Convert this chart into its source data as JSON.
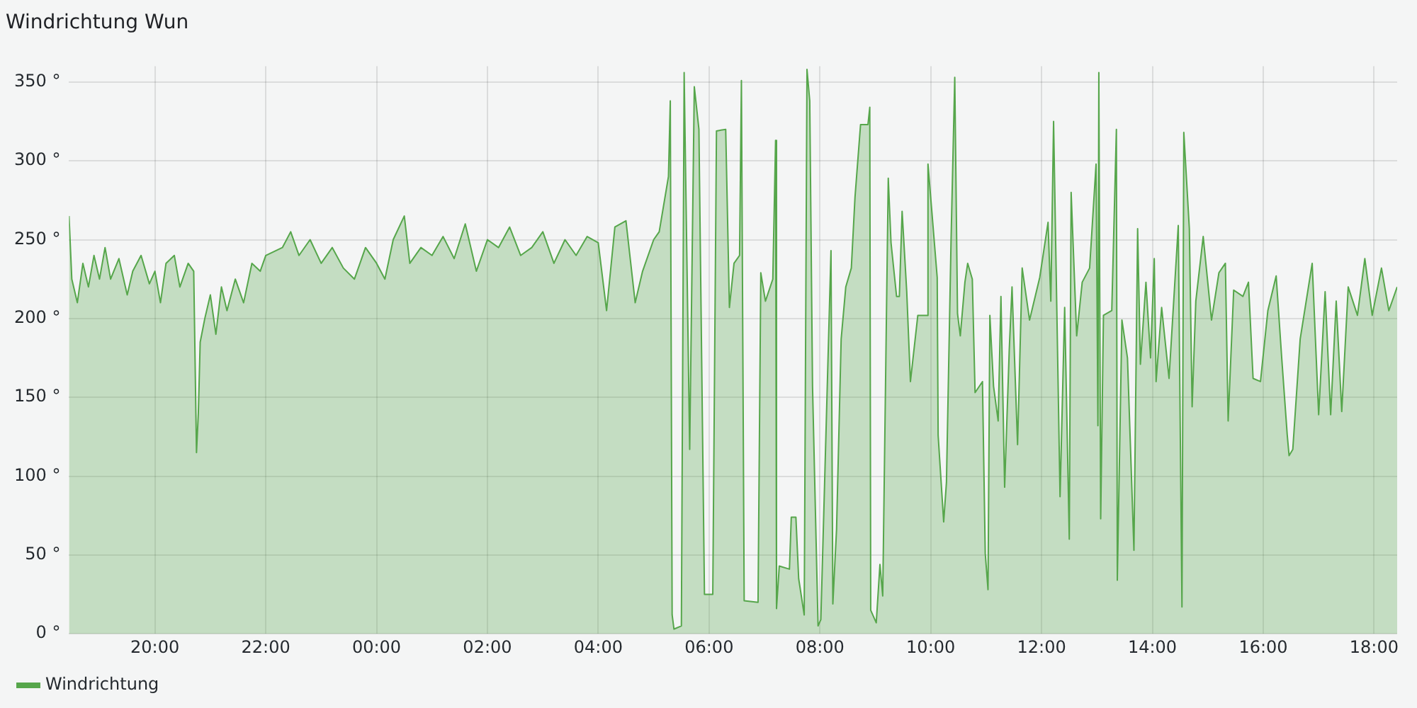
{
  "chart_data": {
    "type": "area",
    "title": "Windrichtung Wun",
    "legend": "bottom left",
    "grid": true,
    "marker": "none",
    "line_style": "solid",
    "xlim": [
      "--01-01T18:27",
      "--01-02T18:25"
    ],
    "xticks": [
      {
        "value": "--01-01T20:00",
        "label": "20:00"
      },
      {
        "value": "--01-01T22:00",
        "label": "22:00"
      },
      {
        "value": "--01-02T00:00",
        "label": "00:00"
      },
      {
        "value": "--01-02T02:00",
        "label": "02:00"
      },
      {
        "value": "--01-02T04:00",
        "label": "04:00"
      },
      {
        "value": "--01-02T06:00",
        "label": "06:00"
      },
      {
        "value": "--01-02T08:00",
        "label": "08:00"
      },
      {
        "value": "--01-02T10:00",
        "label": "10:00"
      },
      {
        "value": "--01-02T12:00",
        "label": "12:00"
      },
      {
        "value": "--01-02T14:00",
        "label": "14:00"
      },
      {
        "value": "--01-02T16:00",
        "label": "16:00"
      },
      {
        "value": "--01-02T18:00",
        "label": "18:00"
      }
    ],
    "ylim": [
      0,
      360
    ],
    "yticks": [
      {
        "value": 0,
        "label": "0 °"
      },
      {
        "value": 50,
        "label": "50 °"
      },
      {
        "value": 100,
        "label": "100 °"
      },
      {
        "value": 150,
        "label": "150 °"
      },
      {
        "value": 200,
        "label": "200 °"
      },
      {
        "value": 250,
        "label": "250 °"
      },
      {
        "value": 300,
        "label": "300 °"
      },
      {
        "value": 350,
        "label": "350 °"
      }
    ],
    "series": [
      {
        "name": "Windrichtung",
        "color": "#56a64b",
        "x": [
          "--01-01T18:27",
          "--01-01T18:30",
          "--01-01T18:36",
          "--01-01T18:42",
          "--01-01T18:48",
          "--01-01T18:54",
          "--01-01T19:00",
          "--01-01T19:06",
          "--01-01T19:12",
          "--01-01T19:21",
          "--01-01T19:30",
          "--01-01T19:36",
          "--01-01T19:45",
          "--01-01T19:54",
          "--01-01T20:00",
          "--01-01T20:06",
          "--01-01T20:12",
          "--01-01T20:21",
          "--01-01T20:27",
          "--01-01T20:36",
          "--01-01T20:42",
          "--01-01T20:45",
          "--01-01T20:47",
          "--01-01T20:49",
          "--01-01T20:54",
          "--01-01T21:00",
          "--01-01T21:06",
          "--01-01T21:12",
          "--01-01T21:18",
          "--01-01T21:27",
          "--01-01T21:36",
          "--01-01T21:45",
          "--01-01T21:54",
          "--01-01T22:00",
          "--01-01T22:18",
          "--01-01T22:27",
          "--01-01T22:36",
          "--01-01T22:48",
          "--01-01T23:00",
          "--01-01T23:12",
          "--01-01T23:24",
          "--01-01T23:36",
          "--01-01T23:48",
          "--01-02T00:00",
          "--01-02T00:09",
          "--01-02T00:18",
          "--01-02T00:30",
          "--01-02T00:36",
          "--01-02T00:48",
          "--01-02T01:00",
          "--01-02T01:12",
          "--01-02T01:24",
          "--01-02T01:36",
          "--01-02T01:48",
          "--01-02T02:00",
          "--01-02T02:12",
          "--01-02T02:24",
          "--01-02T02:36",
          "--01-02T02:48",
          "--01-02T03:00",
          "--01-02T03:12",
          "--01-02T03:24",
          "--01-02T03:36",
          "--01-02T03:48",
          "--01-02T04:00",
          "--01-02T04:09",
          "--01-02T04:18",
          "--01-02T04:30",
          "--01-02T04:40",
          "--01-02T04:48",
          "--01-02T05:00",
          "--01-02T05:06",
          "--01-02T05:16",
          "--01-02T05:18",
          "--01-02T05:20",
          "--01-02T05:22",
          "--01-02T05:30",
          "--01-02T05:33",
          "--01-02T05:39",
          "--01-02T05:44",
          "--01-02T05:49",
          "--01-02T05:55",
          "--01-02T06:04",
          "--01-02T06:08",
          "--01-02T06:18",
          "--01-02T06:22",
          "--01-02T06:27",
          "--01-02T06:33",
          "--01-02T06:35",
          "--01-02T06:38",
          "--01-02T06:53",
          "--01-02T06:56",
          "--01-02T07:01",
          "--01-02T07:09",
          "--01-02T07:12",
          "--01-02T07:13",
          "--01-02T07:16",
          "--01-02T07:27",
          "--01-02T07:29",
          "--01-02T07:34",
          "--01-02T07:37",
          "--01-02T07:43",
          "--01-02T07:46",
          "--01-02T07:49",
          "--01-02T07:52",
          "--01-02T07:58",
          "--01-02T08:01",
          "--01-02T08:12",
          "--01-02T08:14",
          "--01-02T08:18",
          "--01-02T08:23",
          "--01-02T08:28",
          "--01-02T08:34",
          "--01-02T08:38",
          "--01-02T08:44",
          "--01-02T08:52",
          "--01-02T08:54",
          "--01-02T08:55",
          "--01-02T09:01",
          "--01-02T09:05",
          "--01-02T09:08",
          "--01-02T09:14",
          "--01-02T09:17",
          "--01-02T09:23",
          "--01-02T09:26",
          "--01-02T09:29",
          "--01-02T09:34",
          "--01-02T09:38",
          "--01-02T09:46",
          "--01-02T09:56",
          "--01-02T09:57",
          "--01-02T10:07",
          "--01-02T10:08",
          "--01-02T10:14",
          "--01-02T10:17",
          "--01-02T10:22",
          "--01-02T10:26",
          "--01-02T10:29",
          "--01-02T10:32",
          "--01-02T10:37",
          "--01-02T10:40",
          "--01-02T10:45",
          "--01-02T10:48",
          "--01-02T10:56",
          "--01-02T10:59",
          "--01-02T11:02",
          "--01-02T11:04",
          "--01-02T11:08",
          "--01-02T11:13",
          "--01-02T11:16",
          "--01-02T11:20",
          "--01-02T11:25",
          "--01-02T11:28",
          "--01-02T11:34",
          "--01-02T11:39",
          "--01-02T11:47",
          "--01-02T11:58",
          "--01-02T12:07",
          "--01-02T12:10",
          "--01-02T12:13",
          "--01-02T12:20",
          "--01-02T12:25",
          "--01-02T12:30",
          "--01-02T12:32",
          "--01-02T12:38",
          "--01-02T12:44",
          "--01-02T12:52",
          "--01-02T12:59",
          "--01-02T13:01",
          "--01-02T13:02",
          "--01-02T13:04",
          "--01-02T13:07",
          "--01-02T13:16",
          "--01-02T13:21",
          "--01-02T13:22",
          "--01-02T13:27",
          "--01-02T13:33",
          "--01-02T13:40",
          "--01-02T13:44",
          "--01-02T13:47",
          "--01-02T13:53",
          "--01-02T13:58",
          "--01-02T14:02",
          "--01-02T14:04",
          "--01-02T14:10",
          "--01-02T14:18",
          "--01-02T14:28",
          "--01-02T14:32",
          "--01-02T14:34",
          "--01-02T14:40",
          "--01-02T14:43",
          "--01-02T14:47",
          "--01-02T14:55",
          "--01-02T15:04",
          "--01-02T15:12",
          "--01-02T15:19",
          "--01-02T15:22",
          "--01-02T15:28",
          "--01-02T15:38",
          "--01-02T15:44",
          "--01-02T15:49",
          "--01-02T15:57",
          "--01-02T16:05",
          "--01-02T16:14",
          "--01-02T16:20",
          "--01-02T16:26",
          "--01-02T16:28",
          "--01-02T16:32",
          "--01-02T16:40",
          "--01-02T16:53",
          "--01-02T17:00",
          "--01-02T17:07",
          "--01-02T17:13",
          "--01-02T17:19",
          "--01-02T17:25",
          "--01-02T17:32",
          "--01-02T17:42",
          "--01-02T17:50",
          "--01-02T17:58",
          "--01-02T18:08",
          "--01-02T18:16",
          "--01-02T18:25"
        ],
        "values": [
          265,
          225,
          210,
          235,
          220,
          240,
          225,
          245,
          225,
          238,
          215,
          230,
          240,
          222,
          230,
          210,
          235,
          240,
          220,
          235,
          230,
          115,
          140,
          185,
          200,
          215,
          190,
          220,
          205,
          225,
          210,
          235,
          230,
          240,
          245,
          255,
          240,
          250,
          235,
          245,
          232,
          225,
          245,
          235,
          225,
          250,
          265,
          235,
          245,
          240,
          252,
          238,
          260,
          230,
          250,
          245,
          258,
          240,
          245,
          255,
          235,
          250,
          240,
          252,
          248,
          205,
          258,
          262,
          210,
          230,
          250,
          255,
          290,
          338,
          12,
          3,
          5,
          356,
          117,
          347,
          320,
          25,
          25,
          319,
          320,
          207,
          235,
          240,
          351,
          21,
          20,
          229,
          211,
          225,
          313,
          16,
          43,
          41,
          74,
          74,
          35,
          12,
          358,
          338,
          157,
          5,
          9,
          243,
          19,
          66,
          187,
          220,
          232,
          277,
          323,
          323,
          334,
          15,
          7,
          44,
          24,
          289,
          248,
          214,
          214,
          268,
          217,
          160,
          202,
          202,
          298,
          226,
          126,
          71,
          96,
          250,
          353,
          203,
          189,
          223,
          235,
          225,
          153,
          160,
          51,
          28,
          202,
          157,
          135,
          214,
          93,
          180,
          220,
          120,
          232,
          199,
          226,
          261,
          211,
          325,
          87,
          207,
          60,
          280,
          189,
          223,
          232,
          298,
          132,
          356,
          73,
          202,
          205,
          320,
          34,
          199,
          175,
          53,
          257,
          171,
          223,
          175,
          238,
          160,
          207,
          162,
          259,
          17,
          318,
          257,
          144,
          211,
          252,
          199,
          229,
          235,
          135,
          218,
          214,
          223,
          162,
          160,
          205,
          227,
          175,
          126,
          113,
          117,
          187,
          235,
          139,
          217,
          139,
          211,
          141,
          220,
          202,
          238,
          202,
          232,
          205,
          220
        ]
      }
    ]
  }
}
